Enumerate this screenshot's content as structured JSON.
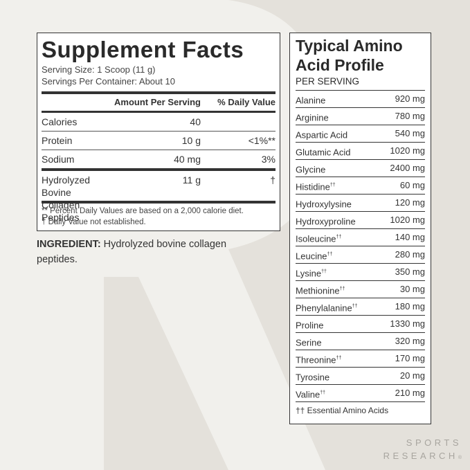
{
  "supplement_facts": {
    "title": "Supplement Facts",
    "serving_size": "Serving Size: 1 Scoop (11 g)",
    "servings_per_container": "Servings Per Container: About 10",
    "header_amount": "Amount Per Serving",
    "header_dv": "% Daily Value",
    "rows": [
      {
        "name": "Calories",
        "amount": "40",
        "dv": ""
      },
      {
        "name": "Protein",
        "amount": "10 g",
        "dv": "<1%**"
      },
      {
        "name": "Sodium",
        "amount": "40 mg",
        "dv": "3%"
      }
    ],
    "collagen": {
      "name_line1": "Hydrolyzed Bovine",
      "name_line2": "Collagen Peptides",
      "amount": "11 g",
      "dv": "†"
    },
    "footnote1": "** Percent Daily Values are based on a 2,000 calorie diet.",
    "footnote2": "† Daily Value not established."
  },
  "ingredient": {
    "label": "INGREDIENT:",
    "text": " Hydrolyzed bovine collagen peptides."
  },
  "amino": {
    "title_line1": "Typical Amino",
    "title_line2": "Acid Profile",
    "subtitle": "PER SERVING",
    "rows": [
      {
        "name": "Alanine",
        "mark": "",
        "value": "920 mg"
      },
      {
        "name": "Arginine",
        "mark": "",
        "value": "780 mg"
      },
      {
        "name": "Aspartic Acid",
        "mark": "",
        "value": "540 mg"
      },
      {
        "name": "Glutamic Acid",
        "mark": "",
        "value": "1020 mg"
      },
      {
        "name": "Glycine",
        "mark": "",
        "value": "2400 mg"
      },
      {
        "name": "Histidine",
        "mark": "††",
        "value": "60 mg"
      },
      {
        "name": "Hydroxylysine",
        "mark": "",
        "value": "120 mg"
      },
      {
        "name": "Hydroxyproline",
        "mark": "",
        "value": "1020 mg"
      },
      {
        "name": "Isoleucine",
        "mark": "††",
        "value": "140 mg"
      },
      {
        "name": "Leucine",
        "mark": "††",
        "value": "280 mg"
      },
      {
        "name": "Lysine",
        "mark": "††",
        "value": "350 mg"
      },
      {
        "name": "Methionine",
        "mark": "††",
        "value": "30 mg"
      },
      {
        "name": "Phenylalanine",
        "mark": "††",
        "value": "180 mg"
      },
      {
        "name": "Proline",
        "mark": "",
        "value": "1330 mg"
      },
      {
        "name": "Serine",
        "mark": "",
        "value": "320 mg"
      },
      {
        "name": "Threonine",
        "mark": "††",
        "value": "170 mg"
      },
      {
        "name": "Tyrosine",
        "mark": "",
        "value": "20 mg"
      },
      {
        "name": "Valine",
        "mark": "††",
        "value": "210 mg"
      }
    ],
    "footnote": "†† Essential Amino Acids"
  },
  "brand": {
    "line1": "SPORTS",
    "line2": "RESEARCH",
    "mark": "®"
  },
  "colors": {
    "background": "#e4e1db",
    "watermark": "#f1f0ec",
    "ink": "#2a2a2a",
    "brand": "#a8a59f"
  }
}
